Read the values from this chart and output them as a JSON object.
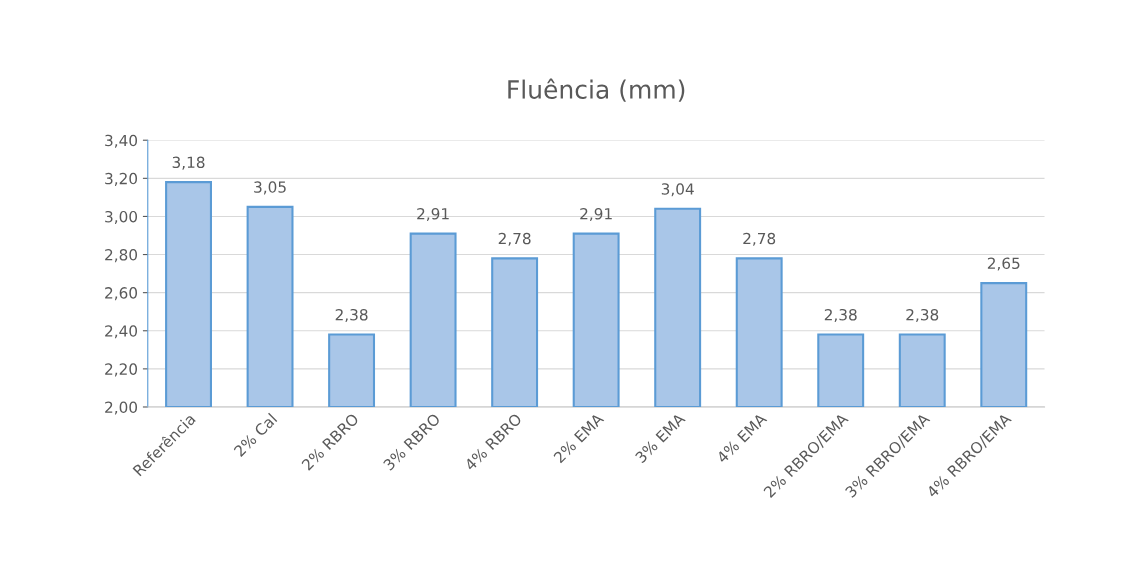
{
  "chart_data": {
    "type": "bar",
    "title": "Fluência (mm)",
    "categories": [
      "Referência",
      "2% Cal",
      "2% RBRO",
      "3% RBRO",
      "4% RBRO",
      "2% EMA",
      "3% EMA",
      "4% EMA",
      "2% RBRO/EMA",
      "3% RBRO/EMA",
      "4% RBRO/EMA"
    ],
    "values": [
      3.18,
      3.05,
      2.38,
      2.91,
      2.78,
      2.91,
      3.04,
      2.78,
      2.38,
      2.38,
      2.65
    ],
    "value_labels": [
      "3,18",
      "3,05",
      "2,38",
      "2,91",
      "2,78",
      "2,91",
      "3,04",
      "2,78",
      "2,38",
      "2,38",
      "2,65"
    ],
    "color": "#a9c6e8",
    "ylim": [
      2.0,
      3.4
    ],
    "yticks": [
      {
        "value": 2.0,
        "label": "2,00"
      },
      {
        "value": 2.2,
        "label": "2,20"
      },
      {
        "value": 2.4,
        "label": "2,40"
      },
      {
        "value": 2.6,
        "label": "2,60"
      },
      {
        "value": 2.8,
        "label": "2,80"
      },
      {
        "value": 3.0,
        "label": "3,00"
      },
      {
        "value": 3.2,
        "label": "3,20"
      },
      {
        "value": 3.4,
        "label": "3,40"
      }
    ],
    "grid": "y"
  }
}
